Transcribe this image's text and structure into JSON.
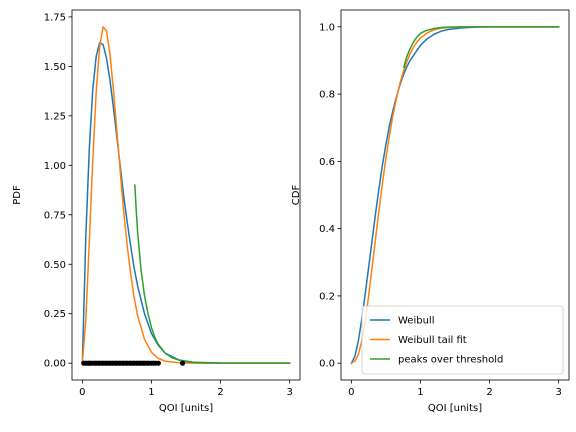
{
  "chart_data": [
    {
      "type": "line",
      "xlabel": "QOI [units]",
      "ylabel": "PDF",
      "xlim": [
        -0.15,
        3.15
      ],
      "ylim": [
        -0.085,
        1.785
      ],
      "xticks": [
        0,
        1,
        2,
        3
      ],
      "xtick_labels": [
        "0",
        "1",
        "2",
        "3"
      ],
      "yticks": [
        0.0,
        0.25,
        0.5,
        0.75,
        1.0,
        1.25,
        1.5,
        1.75
      ],
      "ytick_labels": [
        "0.00",
        "0.25",
        "0.50",
        "0.75",
        "1.00",
        "1.25",
        "1.50",
        "1.75"
      ],
      "grid": false,
      "series": [
        {
          "color": "#1f77b4",
          "x": [
            0.0,
            0.05,
            0.1,
            0.15,
            0.2,
            0.25,
            0.3,
            0.35,
            0.4,
            0.45,
            0.5,
            0.55,
            0.6,
            0.65,
            0.7,
            0.75,
            0.8,
            0.9,
            1.0,
            1.1,
            1.2,
            1.4,
            1.6,
            2.0,
            2.5,
            3.0
          ],
          "y": [
            0.0,
            0.64,
            1.08,
            1.38,
            1.55,
            1.62,
            1.61,
            1.54,
            1.43,
            1.29,
            1.14,
            0.99,
            0.84,
            0.71,
            0.59,
            0.48,
            0.39,
            0.25,
            0.15,
            0.09,
            0.05,
            0.016,
            0.005,
            0.001,
            0.0,
            0.0
          ]
        },
        {
          "color": "#ff7f0e",
          "x": [
            0.0,
            0.05,
            0.1,
            0.15,
            0.2,
            0.25,
            0.3,
            0.35,
            0.4,
            0.45,
            0.5,
            0.55,
            0.6,
            0.65,
            0.7,
            0.75,
            0.8,
            0.9,
            1.0,
            1.1,
            1.2,
            1.4,
            1.6,
            2.0,
            2.5,
            3.0
          ],
          "y": [
            0.0,
            0.22,
            0.61,
            1.02,
            1.37,
            1.6,
            1.7,
            1.68,
            1.56,
            1.38,
            1.17,
            0.96,
            0.76,
            0.59,
            0.45,
            0.33,
            0.24,
            0.12,
            0.055,
            0.024,
            0.01,
            0.002,
            0.0,
            0.0,
            0.0,
            0.0
          ]
        },
        {
          "color": "#2ca02c",
          "x": [
            0.76,
            0.78,
            0.8,
            0.85,
            0.9,
            0.95,
            1.0,
            1.05,
            1.1,
            1.2,
            1.3,
            1.4,
            1.5,
            1.6,
            1.8,
            2.0,
            2.5,
            3.0
          ],
          "y": [
            0.9,
            0.77,
            0.66,
            0.47,
            0.34,
            0.25,
            0.18,
            0.13,
            0.095,
            0.05,
            0.027,
            0.015,
            0.008,
            0.004,
            0.001,
            0.0,
            0.0,
            0.0
          ]
        }
      ],
      "samples": {
        "color": "#000000",
        "x": [
          0.02,
          0.05,
          0.08,
          0.1,
          0.12,
          0.15,
          0.18,
          0.2,
          0.23,
          0.25,
          0.28,
          0.3,
          0.33,
          0.35,
          0.38,
          0.4,
          0.43,
          0.45,
          0.48,
          0.5,
          0.53,
          0.55,
          0.58,
          0.6,
          0.63,
          0.65,
          0.68,
          0.7,
          0.73,
          0.75,
          0.78,
          0.8,
          0.83,
          0.85,
          0.88,
          0.9,
          0.93,
          0.96,
          1.0,
          1.03,
          1.06,
          1.1,
          1.45
        ],
        "y": [
          0.0,
          0.0,
          0.0,
          0.0,
          0.0,
          0.0,
          0.0,
          0.0,
          0.0,
          0.0,
          0.0,
          0.0,
          0.0,
          0.0,
          0.0,
          0.0,
          0.0,
          0.0,
          0.0,
          0.0,
          0.0,
          0.0,
          0.0,
          0.0,
          0.0,
          0.0,
          0.0,
          0.0,
          0.0,
          0.0,
          0.0,
          0.0,
          0.0,
          0.0,
          0.0,
          0.0,
          0.0,
          0.0,
          0.0,
          0.0,
          0.0,
          0.0,
          0.0
        ]
      }
    },
    {
      "type": "line",
      "xlabel": "QOI [units]",
      "ylabel": "CDF",
      "xlim": [
        -0.15,
        3.15
      ],
      "ylim": [
        -0.05,
        1.05
      ],
      "xticks": [
        0,
        1,
        2,
        3
      ],
      "xtick_labels": [
        "0",
        "1",
        "2",
        "3"
      ],
      "yticks": [
        0.0,
        0.2,
        0.4,
        0.6,
        0.8,
        1.0
      ],
      "ytick_labels": [
        "0.0",
        "0.2",
        "0.4",
        "0.6",
        "0.8",
        "1.0"
      ],
      "grid": false,
      "legend": {
        "position": "lower-right",
        "entries": [
          {
            "label": "Weibull",
            "color": "#1f77b4"
          },
          {
            "label": "Weibull tail fit",
            "color": "#ff7f0e"
          },
          {
            "label": "peaks over threshold",
            "color": "#2ca02c"
          }
        ]
      },
      "series": [
        {
          "color": "#1f77b4",
          "x": [
            0.0,
            0.05,
            0.1,
            0.15,
            0.2,
            0.25,
            0.3,
            0.35,
            0.4,
            0.45,
            0.5,
            0.55,
            0.6,
            0.65,
            0.7,
            0.75,
            0.8,
            0.85,
            0.9,
            0.95,
            1.0,
            1.1,
            1.2,
            1.3,
            1.4,
            1.6,
            1.8,
            2.0,
            2.5,
            3.0
          ],
          "y": [
            0.0,
            0.02,
            0.065,
            0.13,
            0.205,
            0.285,
            0.365,
            0.445,
            0.52,
            0.59,
            0.65,
            0.705,
            0.75,
            0.79,
            0.825,
            0.855,
            0.88,
            0.9,
            0.915,
            0.93,
            0.945,
            0.965,
            0.978,
            0.987,
            0.992,
            0.997,
            0.999,
            1.0,
            1.0,
            1.0
          ]
        },
        {
          "color": "#ff7f0e",
          "x": [
            0.0,
            0.05,
            0.1,
            0.15,
            0.2,
            0.25,
            0.3,
            0.35,
            0.4,
            0.45,
            0.5,
            0.55,
            0.6,
            0.65,
            0.7,
            0.75,
            0.8,
            0.85,
            0.9,
            0.95,
            1.0,
            1.1,
            1.2,
            1.3,
            1.4,
            1.6,
            2.0,
            2.5,
            3.0
          ],
          "y": [
            0.0,
            0.006,
            0.025,
            0.065,
            0.125,
            0.2,
            0.285,
            0.37,
            0.455,
            0.535,
            0.61,
            0.675,
            0.735,
            0.785,
            0.83,
            0.865,
            0.895,
            0.92,
            0.94,
            0.955,
            0.967,
            0.982,
            0.991,
            0.996,
            0.998,
            1.0,
            1.0,
            1.0,
            1.0
          ]
        },
        {
          "color": "#2ca02c",
          "x": [
            0.76,
            0.8,
            0.85,
            0.9,
            0.95,
            1.0,
            1.05,
            1.1,
            1.2,
            1.3,
            1.4,
            1.6,
            1.8,
            2.0,
            2.5,
            3.0
          ],
          "y": [
            0.88,
            0.91,
            0.935,
            0.955,
            0.97,
            0.98,
            0.986,
            0.99,
            0.995,
            0.998,
            0.999,
            1.0,
            1.0,
            1.0,
            1.0,
            1.0
          ]
        }
      ]
    }
  ]
}
